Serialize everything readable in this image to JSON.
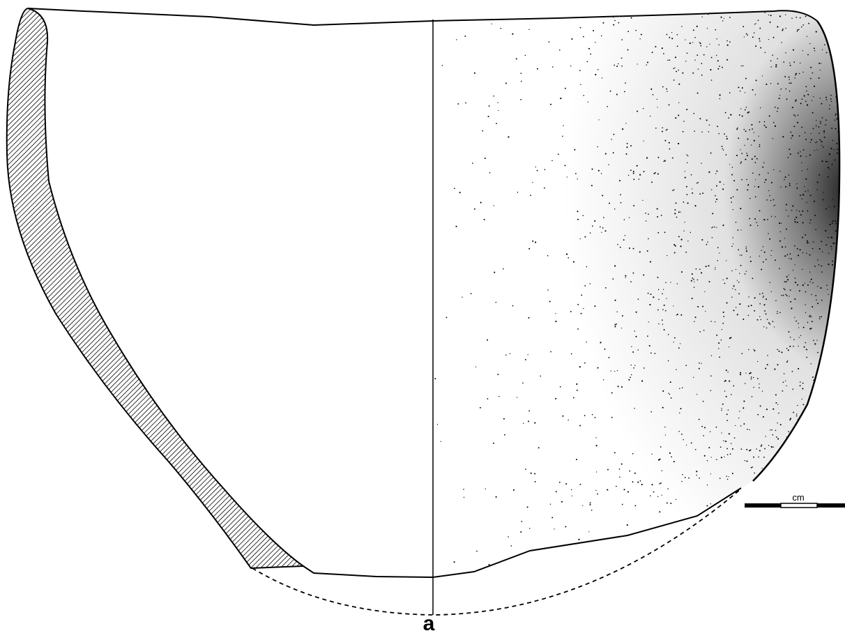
{
  "figure": {
    "label": "a"
  },
  "scale_bar": {
    "unit": "cm"
  },
  "colors": {
    "ink": "#000000",
    "paper": "#ffffff"
  }
}
